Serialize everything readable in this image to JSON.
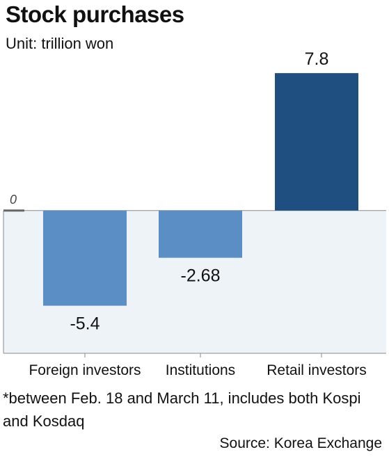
{
  "title": "Stock purchases",
  "unit": "Unit: trillion won",
  "footnote": "*between Feb. 18 and March 11, includes both Kospi and Kosdaq",
  "source": "Source: Korea Exchange",
  "zero_label": "0",
  "colors": {
    "negative_bar": "#5b8ec4",
    "positive_bar": "#1f4e80",
    "negative_area": "#eef3f8",
    "axis": "#8a8a8a",
    "zero_tick": "#666666"
  },
  "chart_data": {
    "type": "bar",
    "categories": [
      "Foreign investors",
      "Institutions",
      "Retail investors"
    ],
    "values": [
      -5.4,
      -2.68,
      7.8
    ],
    "value_labels": [
      "-5.4",
      "-2.68",
      "7.8"
    ],
    "title": "Stock purchases",
    "xlabel": "",
    "ylabel": "",
    "ylim": [
      -8.1,
      8.2
    ],
    "grid": false,
    "legend": "none"
  }
}
